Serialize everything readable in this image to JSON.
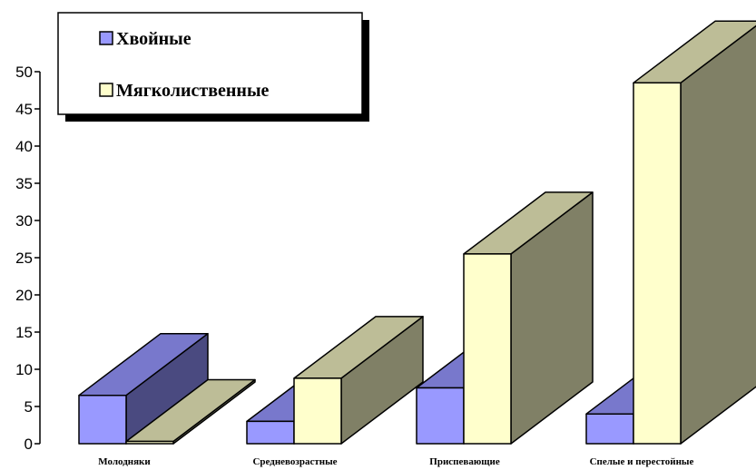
{
  "chart_data": {
    "type": "bar",
    "style": "3d",
    "categories": [
      "Молодняки",
      "Средневозрастные",
      "Приспевающие",
      "Спелые и перестойные"
    ],
    "series": [
      {
        "name": "Хвойные",
        "values": [
          6.5,
          3,
          7.5,
          4
        ],
        "colors": {
          "front": "#9999FF",
          "top": "#7878CC",
          "side": "#4A4A80"
        }
      },
      {
        "name": "Мягколиственные",
        "values": [
          0.3,
          8.8,
          25.5,
          48.5
        ],
        "colors": {
          "front": "#FFFFCC",
          "top": "#BDBD97",
          "side": "#808066"
        }
      }
    ],
    "y_ticks": [
      "0",
      "5",
      "10",
      "15",
      "20",
      "25",
      "30",
      "35",
      "40",
      "45",
      "50"
    ],
    "ylim": [
      0,
      50
    ],
    "grid": false,
    "legend_position": "top-left"
  }
}
